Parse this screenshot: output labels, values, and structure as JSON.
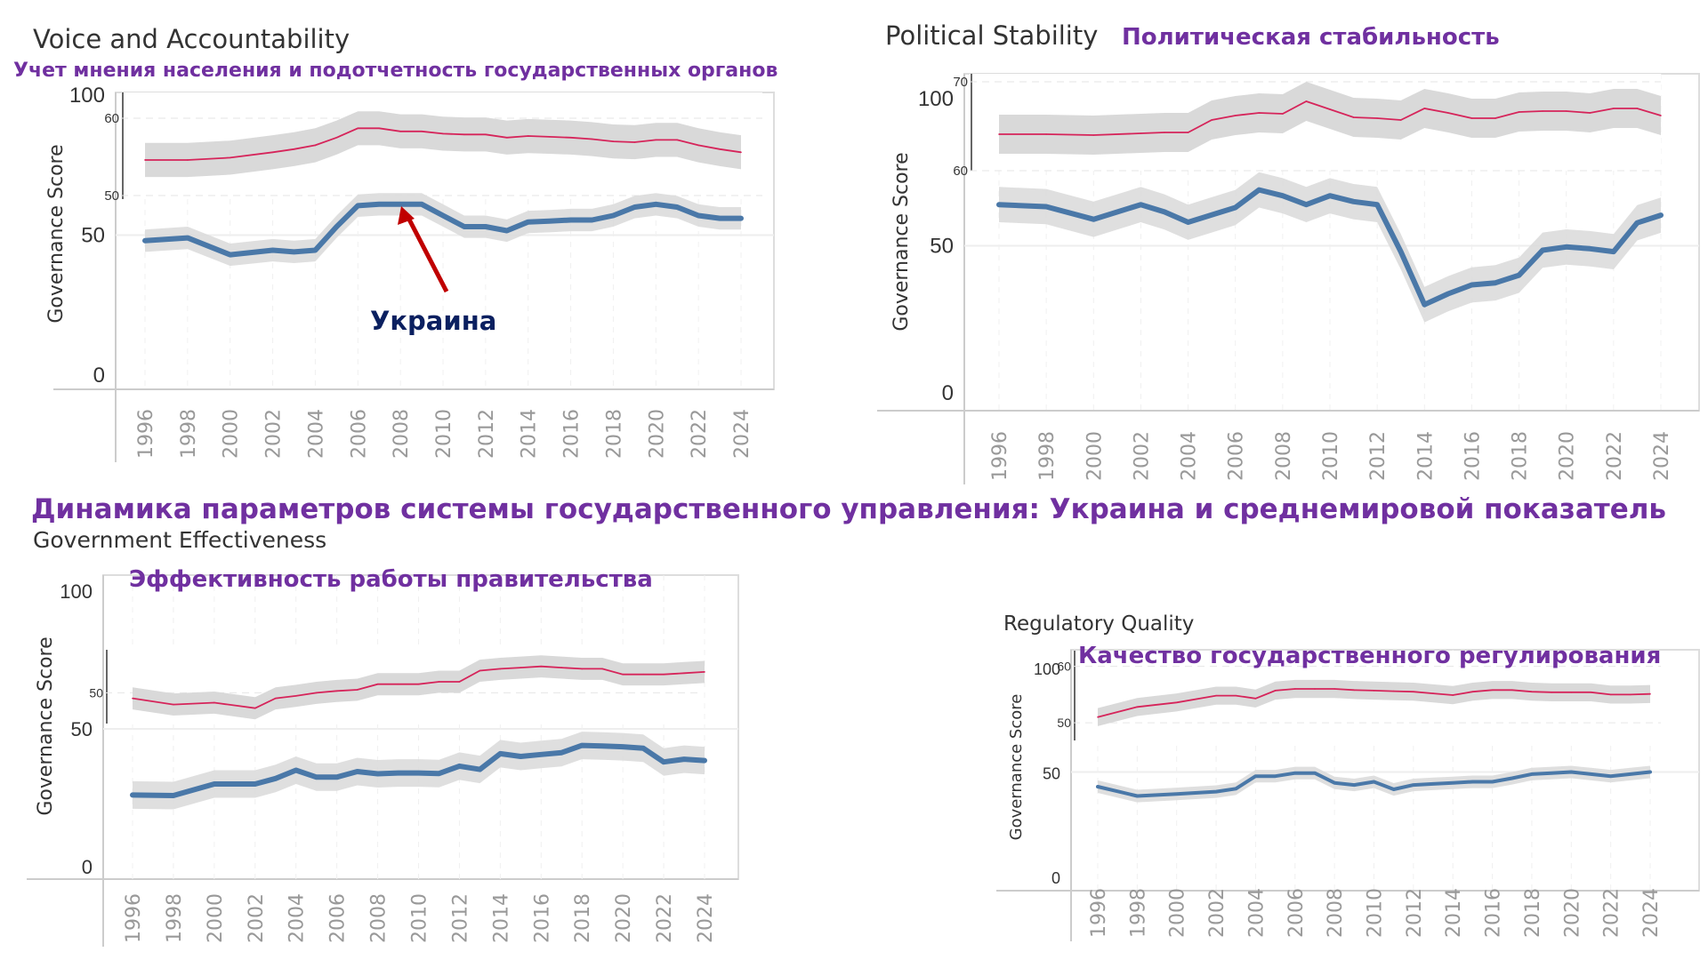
{
  "main_title": "Динамика параметров системы государственного управления: Украина и среднемировой показатель",
  "annotation": "Украина",
  "colors": {
    "country_line": "#4a78a8",
    "world_line": "#d6245a",
    "band": "#d9d9d9",
    "russian_titles": "#7030a0",
    "annotation": "#0b2060",
    "arrow": "#c00000"
  },
  "chart_data": [
    {
      "type": "line",
      "title": "Voice and Accountability",
      "subtitle": "Учет мнения населения и подотчетность государственных органов",
      "ylabel": "Governance Score",
      "ylim": [
        0,
        100
      ],
      "yticks": [
        "0",
        "50",
        "100"
      ],
      "x": [
        1996,
        1998,
        2000,
        2002,
        2003,
        2004,
        2005,
        2006,
        2007,
        2008,
        2009,
        2010,
        2011,
        2012,
        2013,
        2014,
        2015,
        2016,
        2017,
        2018,
        2019,
        2020,
        2021,
        2022,
        2023,
        2024
      ],
      "xticks": [
        "1996",
        "1998",
        "2000",
        "2002",
        "2004",
        "2006",
        "2008",
        "2010",
        "2012",
        "2014",
        "2016",
        "2018",
        "2020",
        "2022",
        "2024"
      ],
      "country": {
        "values": [
          48,
          49,
          43,
          44.6,
          44,
          44.6,
          53,
          60.5,
          61,
          61,
          61,
          57,
          53,
          53,
          51.6,
          54.7,
          55,
          55.4,
          55.4,
          57,
          60,
          61,
          60,
          57,
          56,
          56
        ],
        "margin": 4
      },
      "world": {
        "ylim": [
          50,
          60
        ],
        "yticks": [
          "50",
          "60"
        ],
        "values": [
          54.6,
          54.6,
          54.9,
          55.6,
          56,
          56.5,
          57.5,
          58.7,
          58.7,
          58.3,
          58.3,
          58,
          57.9,
          57.9,
          57.5,
          57.7,
          57.6,
          57.5,
          57.3,
          57,
          56.9,
          57.2,
          57.2,
          56.5,
          56,
          55.6
        ],
        "margin": 2.2
      }
    },
    {
      "type": "line",
      "title": "Political Stability",
      "subtitle": "Политическая стабильность",
      "ylabel": "Governance Score",
      "ylim": [
        0,
        100
      ],
      "yticks": [
        "0",
        "50",
        "100"
      ],
      "x": [
        1996,
        1998,
        2000,
        2002,
        2003,
        2004,
        2005,
        2006,
        2007,
        2008,
        2009,
        2010,
        2011,
        2012,
        2013,
        2014,
        2015,
        2016,
        2017,
        2018,
        2019,
        2020,
        2021,
        2022,
        2023,
        2024
      ],
      "xticks": [
        "1996",
        "1998",
        "2000",
        "2002",
        "2004",
        "2006",
        "2008",
        "2010",
        "2012",
        "2014",
        "2016",
        "2018",
        "2020",
        "2022",
        "2024"
      ],
      "country": {
        "values": [
          64,
          63.3,
          59,
          64,
          61.5,
          58,
          60.5,
          63,
          69,
          67,
          64,
          67,
          65,
          64,
          48,
          30,
          33.7,
          36.7,
          37.4,
          40,
          48.5,
          49.6,
          49,
          48,
          57.8,
          60.4
        ],
        "margin": 6
      },
      "world": {
        "ylim": [
          60,
          70
        ],
        "yticks": [
          "60",
          "70"
        ],
        "values": [
          64.1,
          64.1,
          64,
          64.2,
          64.3,
          64.3,
          65.7,
          66.2,
          66.5,
          66.4,
          67.8,
          66.9,
          66,
          65.9,
          65.7,
          67,
          66.5,
          65.9,
          65.9,
          66.6,
          66.7,
          66.7,
          66.5,
          67,
          67,
          66.2
        ],
        "margin": 2.2
      }
    },
    {
      "type": "line",
      "title": "Government Effectiveness",
      "subtitle": "Эффективность работы правительства",
      "ylabel": "Governance Score",
      "ylim": [
        0,
        100
      ],
      "yticks": [
        "0",
        "50",
        "100"
      ],
      "x": [
        1996,
        1998,
        2000,
        2002,
        2003,
        2004,
        2005,
        2006,
        2007,
        2008,
        2009,
        2010,
        2011,
        2012,
        2013,
        2014,
        2015,
        2016,
        2017,
        2018,
        2019,
        2020,
        2021,
        2022,
        2023,
        2024
      ],
      "xticks": [
        "1996",
        "1998",
        "2000",
        "2002",
        "2004",
        "2006",
        "2008",
        "2010",
        "2012",
        "2014",
        "2016",
        "2018",
        "2020",
        "2022",
        "2024"
      ],
      "country": {
        "values": [
          26,
          25.8,
          30,
          30,
          32,
          35,
          32.5,
          32.5,
          34.5,
          33.7,
          34,
          34,
          33.8,
          36.5,
          35.3,
          41,
          40,
          40.7,
          41.4,
          44,
          43.8,
          43.5,
          43,
          38,
          39,
          38.5
        ],
        "margin": 5
      },
      "world": {
        "ylim": [
          45,
          57
        ],
        "yticks": [
          "50"
        ],
        "values": [
          49.1,
          48.1,
          48.4,
          47.5,
          49.1,
          49.5,
          50,
          50.3,
          50.5,
          51.4,
          51.4,
          51.4,
          51.8,
          51.8,
          53.6,
          53.9,
          54.1,
          54.3,
          54.1,
          53.9,
          53.9,
          53,
          53,
          53,
          53.2,
          53.4
        ],
        "margin": 1.8
      }
    },
    {
      "type": "line",
      "title": "Regulatory Quality",
      "subtitle": "Качество государственного регулирования",
      "ylabel": "Governance Score",
      "ylim": [
        0,
        100
      ],
      "yticks": [
        "0",
        "50",
        "100"
      ],
      "x": [
        1996,
        1998,
        2000,
        2002,
        2003,
        2004,
        2005,
        2006,
        2007,
        2008,
        2009,
        2010,
        2011,
        2012,
        2013,
        2014,
        2015,
        2016,
        2017,
        2018,
        2019,
        2020,
        2021,
        2022,
        2023,
        2024
      ],
      "xticks": [
        "1996",
        "1998",
        "2000",
        "2002",
        "2004",
        "2006",
        "2008",
        "2010",
        "2012",
        "2014",
        "2016",
        "2018",
        "2020",
        "2022",
        "2024"
      ],
      "country": {
        "values": [
          43,
          38.5,
          39.5,
          40.6,
          42,
          48,
          48,
          49.5,
          49.5,
          44.8,
          43.8,
          45.3,
          41.7,
          43.8,
          44.3,
          44.8,
          45.3,
          45.3,
          47,
          49,
          49.5,
          50,
          49,
          48,
          49,
          50
        ],
        "margin": 3
      },
      "world": {
        "ylim": [
          48.6,
          61.2
        ],
        "yticks": [
          "50",
          "60"
        ],
        "values": [
          51,
          52.8,
          53.6,
          54.8,
          54.8,
          54.3,
          55.7,
          56,
          56,
          56,
          55.8,
          55.7,
          55.6,
          55.5,
          55.2,
          54.9,
          55.5,
          55.8,
          55.8,
          55.5,
          55.4,
          55.4,
          55.4,
          55,
          55,
          55.1
        ],
        "margin": 1.6
      }
    }
  ]
}
